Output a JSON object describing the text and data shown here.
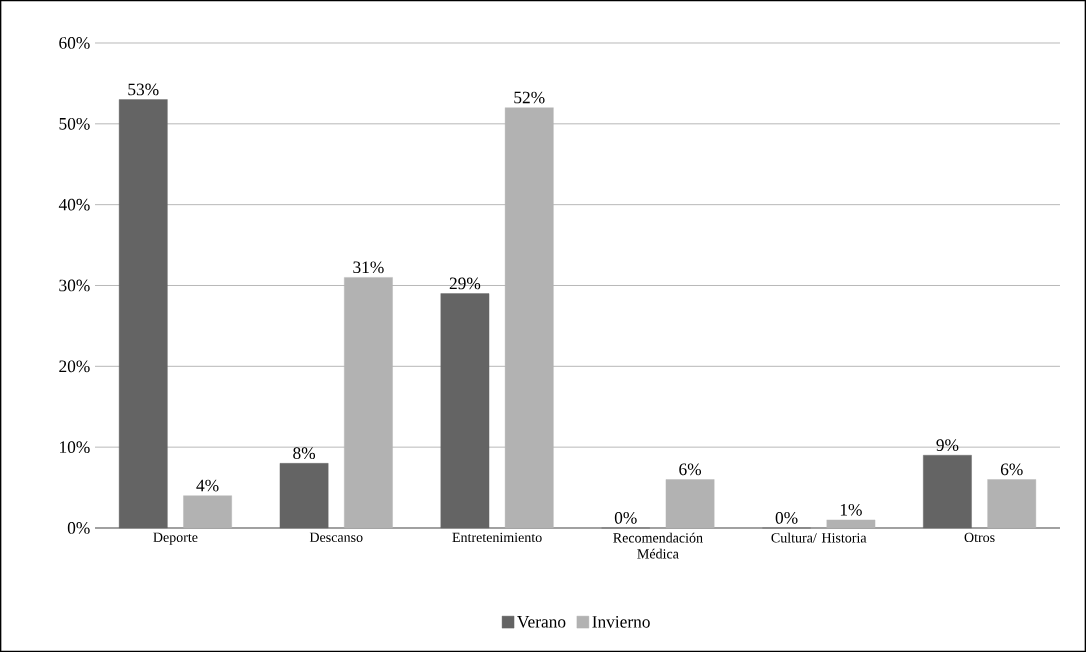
{
  "chart_data": {
    "type": "bar",
    "categories": [
      "Deporte",
      "Descanso",
      "Entretenimiento",
      "Recomendación Médica",
      "Cultura/ Historia",
      "Otros"
    ],
    "series": [
      {
        "name": "Verano",
        "color": "#646464",
        "values": [
          53,
          8,
          29,
          0,
          0,
          9
        ],
        "value_labels": [
          "53%",
          "8%",
          "29%",
          "0%",
          "0%",
          "9%"
        ]
      },
      {
        "name": "Invierno",
        "color": "#b2b2b2",
        "values": [
          4,
          31,
          52,
          6,
          1,
          6
        ],
        "value_labels": [
          "4%",
          "31%",
          "52%",
          "6%",
          "1%",
          "6%"
        ]
      }
    ],
    "ylim": [
      0,
      60
    ],
    "yticks": [
      {
        "value": 0,
        "label": "0%"
      },
      {
        "value": 10,
        "label": "10%"
      },
      {
        "value": 20,
        "label": "20%"
      },
      {
        "value": 30,
        "label": "30%"
      },
      {
        "value": 40,
        "label": "40%"
      },
      {
        "value": 50,
        "label": "50%"
      },
      {
        "value": 60,
        "label": "60%"
      }
    ],
    "grid": "y",
    "legend": "bottom"
  }
}
